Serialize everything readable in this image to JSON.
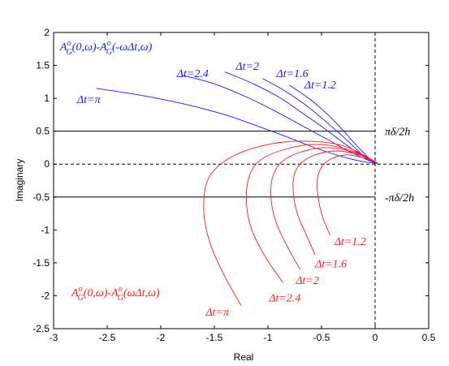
{
  "chart_data": {
    "type": "line",
    "title": "",
    "xlabel": "Real",
    "ylabel": "Imaginary",
    "xlim": [
      -3,
      0.5
    ],
    "ylim": [
      -2.5,
      2
    ],
    "xticks": [
      -3,
      -2.5,
      -2,
      -1.5,
      -1,
      -0.5,
      0,
      0.5
    ],
    "yticks": [
      -2.5,
      -2,
      -1.5,
      -1,
      -0.5,
      0,
      0.5,
      1,
      1.5,
      2
    ],
    "grid": false,
    "colors": {
      "blue": "#1a1aff",
      "red": "#ff1a1a",
      "axis": "#000000"
    },
    "hlines": [
      {
        "y": 0.5,
        "style": "solid",
        "label": "πδ/2h"
      },
      {
        "y": 0,
        "style": "dashed",
        "label": ""
      },
      {
        "y": -0.5,
        "style": "solid",
        "label": "-πδ/2h"
      }
    ],
    "vlines": [
      {
        "x": 0,
        "style": "dashed"
      }
    ],
    "legend_blue_expr": "A",
    "legend_red_expr": "A",
    "series": [
      {
        "group": "blue",
        "name": "Δt=π",
        "x": [
          -2.6,
          -2.2,
          -1.8,
          -1.4,
          -1.1,
          -0.8,
          -0.55,
          -0.3,
          -0.12,
          0.02
        ],
        "y": [
          1.15,
          1.05,
          0.92,
          0.75,
          0.58,
          0.4,
          0.24,
          0.11,
          0.04,
          0.01
        ]
      },
      {
        "group": "blue",
        "name": "Δt=2.4",
        "x": [
          -1.8,
          -1.5,
          -1.2,
          -0.95,
          -0.7,
          -0.45,
          -0.25,
          -0.08,
          0.02
        ],
        "y": [
          1.35,
          1.22,
          1.02,
          0.82,
          0.6,
          0.38,
          0.2,
          0.07,
          0.01
        ]
      },
      {
        "group": "blue",
        "name": "Δt=2",
        "x": [
          -1.4,
          -1.15,
          -0.9,
          -0.7,
          -0.48,
          -0.3,
          -0.15,
          -0.04,
          0.02
        ],
        "y": [
          1.4,
          1.23,
          1.02,
          0.8,
          0.55,
          0.33,
          0.16,
          0.05,
          0.01
        ]
      },
      {
        "group": "blue",
        "name": "Δt=1.6",
        "x": [
          -1.05,
          -0.85,
          -0.65,
          -0.47,
          -0.3,
          -0.17,
          -0.07,
          0.02
        ],
        "y": [
          1.3,
          1.12,
          0.9,
          0.66,
          0.42,
          0.22,
          0.08,
          0.01
        ]
      },
      {
        "group": "blue",
        "name": "Δt=1.2",
        "x": [
          -0.8,
          -0.62,
          -0.46,
          -0.32,
          -0.2,
          -0.1,
          -0.03,
          0.02
        ],
        "y": [
          1.2,
          1.0,
          0.78,
          0.55,
          0.33,
          0.16,
          0.05,
          0.01
        ]
      },
      {
        "group": "red",
        "name": "Δt=π",
        "x": [
          0.02,
          -0.3,
          -0.7,
          -1.05,
          -1.35,
          -1.55,
          -1.6,
          -1.55,
          -1.42,
          -1.25
        ],
        "y": [
          0.02,
          0.28,
          0.35,
          0.28,
          0.1,
          -0.2,
          -0.65,
          -1.15,
          -1.65,
          -2.15
        ]
      },
      {
        "group": "red",
        "name": "Δt=2.4",
        "x": [
          0.02,
          -0.25,
          -0.55,
          -0.85,
          -1.08,
          -1.18,
          -1.2,
          -1.15,
          -1.02,
          -0.86
        ],
        "y": [
          0.02,
          0.22,
          0.3,
          0.22,
          0.05,
          -0.22,
          -0.6,
          -1.0,
          -1.42,
          -1.8
        ]
      },
      {
        "group": "red",
        "name": "Δt=2",
        "x": [
          0.02,
          -0.2,
          -0.45,
          -0.7,
          -0.88,
          -0.96,
          -0.97,
          -0.92,
          -0.82,
          -0.7
        ],
        "y": [
          0.02,
          0.18,
          0.25,
          0.18,
          0.02,
          -0.22,
          -0.55,
          -0.9,
          -1.25,
          -1.6
        ]
      },
      {
        "group": "red",
        "name": "Δt=1.6",
        "x": [
          0.02,
          -0.15,
          -0.36,
          -0.56,
          -0.7,
          -0.76,
          -0.76,
          -0.72,
          -0.64,
          -0.56
        ],
        "y": [
          0.02,
          0.14,
          0.2,
          0.14,
          0.0,
          -0.2,
          -0.48,
          -0.78,
          -1.08,
          -1.38
        ]
      },
      {
        "group": "red",
        "name": "Δt=1.2",
        "x": [
          0.02,
          -0.12,
          -0.27,
          -0.41,
          -0.5,
          -0.54,
          -0.53,
          -0.49,
          -0.42
        ],
        "y": [
          0.02,
          0.1,
          0.14,
          0.08,
          -0.05,
          -0.25,
          -0.52,
          -0.8,
          -1.08
        ]
      }
    ],
    "annotations": [
      {
        "group": "blue",
        "text": "Δt=π",
        "x": -2.78,
        "y": 0.93
      },
      {
        "group": "blue",
        "text": "Δt=2.4",
        "x": -1.85,
        "y": 1.32
      },
      {
        "group": "blue",
        "text": "Δt=2",
        "x": -1.3,
        "y": 1.43
      },
      {
        "group": "blue",
        "text": "Δt=1.6",
        "x": -0.92,
        "y": 1.32
      },
      {
        "group": "blue",
        "text": "Δt=1.2",
        "x": -0.66,
        "y": 1.15
      },
      {
        "group": "red",
        "text": "Δt=1.2",
        "x": -0.38,
        "y": -1.23
      },
      {
        "group": "red",
        "text": "Δt=1.6",
        "x": -0.56,
        "y": -1.57
      },
      {
        "group": "red",
        "text": "Δt=2",
        "x": -0.74,
        "y": -1.82
      },
      {
        "group": "red",
        "text": "Δt=2.4",
        "x": -0.99,
        "y": -2.09
      },
      {
        "group": "red",
        "text": "Δt=π",
        "x": -1.58,
        "y": -2.3
      }
    ],
    "expr_blue": {
      "part1": "A",
      "sup": "o",
      "sub": "G",
      "tail1": "(0,ω)-",
      "part2": "A",
      "tail2": "(-ωΔt,ω)"
    },
    "expr_red": {
      "part1": "A",
      "sup": "o",
      "sub": "G",
      "tail1": "(0,ω)-",
      "part2": "A",
      "tail2": "(ωΔt,ω)"
    }
  }
}
